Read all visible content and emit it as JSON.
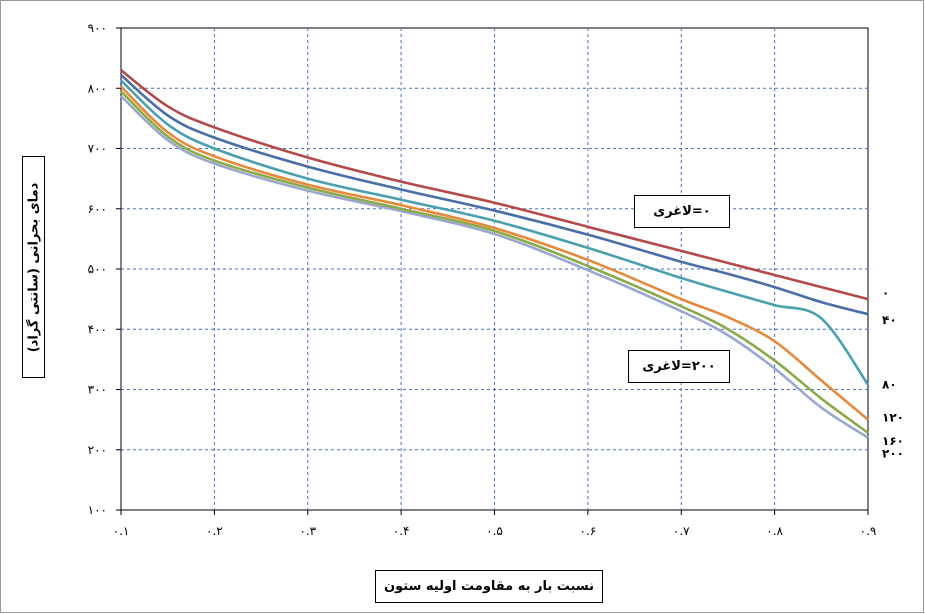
{
  "chart_data": {
    "type": "line",
    "title": "",
    "xlabel": "نسبت بار به مقاومت اولیه ستون",
    "ylabel": "دمای بحرانی (سانتی گراد)",
    "xlim": [
      0.1,
      0.9
    ],
    "ylim": [
      100,
      900
    ],
    "x_ticks": [
      0.1,
      0.2,
      0.3,
      0.4,
      0.5,
      0.6,
      0.7,
      0.8,
      0.9
    ],
    "x_tick_labels": [
      "۰.۱",
      "۰.۲",
      "۰.۳",
      "۰.۴",
      "۰.۵",
      "۰.۶",
      "۰.۷",
      "۰.۸",
      "۰.۹"
    ],
    "y_ticks": [
      100,
      200,
      300,
      400,
      500,
      600,
      700,
      800,
      900
    ],
    "y_tick_labels": [
      "۱۰۰",
      "۲۰۰",
      "۳۰۰",
      "۴۰۰",
      "۵۰۰",
      "۶۰۰",
      "۷۰۰",
      "۸۰۰",
      "۹۰۰"
    ],
    "grid": true,
    "x": [
      0.1,
      0.15,
      0.2,
      0.3,
      0.4,
      0.5,
      0.6,
      0.7,
      0.75,
      0.8,
      0.85,
      0.9
    ],
    "series": [
      {
        "name": "۰",
        "color": "#b44a4a",
        "values": [
          830,
          770,
          735,
          685,
          645,
          610,
          570,
          530,
          510,
          490,
          470,
          450
        ]
      },
      {
        "name": "۴۰",
        "color": "#4a6ea8",
        "values": [
          822,
          755,
          718,
          670,
          632,
          597,
          557,
          512,
          492,
          470,
          445,
          425
        ]
      },
      {
        "name": "۸۰",
        "color": "#4aa0b0",
        "values": [
          813,
          740,
          700,
          650,
          615,
          580,
          535,
          485,
          462,
          440,
          418,
          308
        ]
      },
      {
        "name": "۱۲۰",
        "color": "#e58a3a",
        "values": [
          803,
          727,
          687,
          640,
          606,
          568,
          515,
          450,
          420,
          380,
          315,
          250
        ]
      },
      {
        "name": "۱۶۰",
        "color": "#8bab4a",
        "values": [
          795,
          720,
          680,
          635,
          600,
          563,
          505,
          438,
          400,
          348,
          285,
          228
        ]
      },
      {
        "name": "۲۰۰",
        "color": "#9aa8d0",
        "values": [
          787,
          714,
          675,
          630,
          596,
          558,
          498,
          430,
          390,
          335,
          270,
          220
        ]
      }
    ],
    "annotations": [
      "۰=لاغری",
      "۲۰۰=لاغری"
    ]
  }
}
